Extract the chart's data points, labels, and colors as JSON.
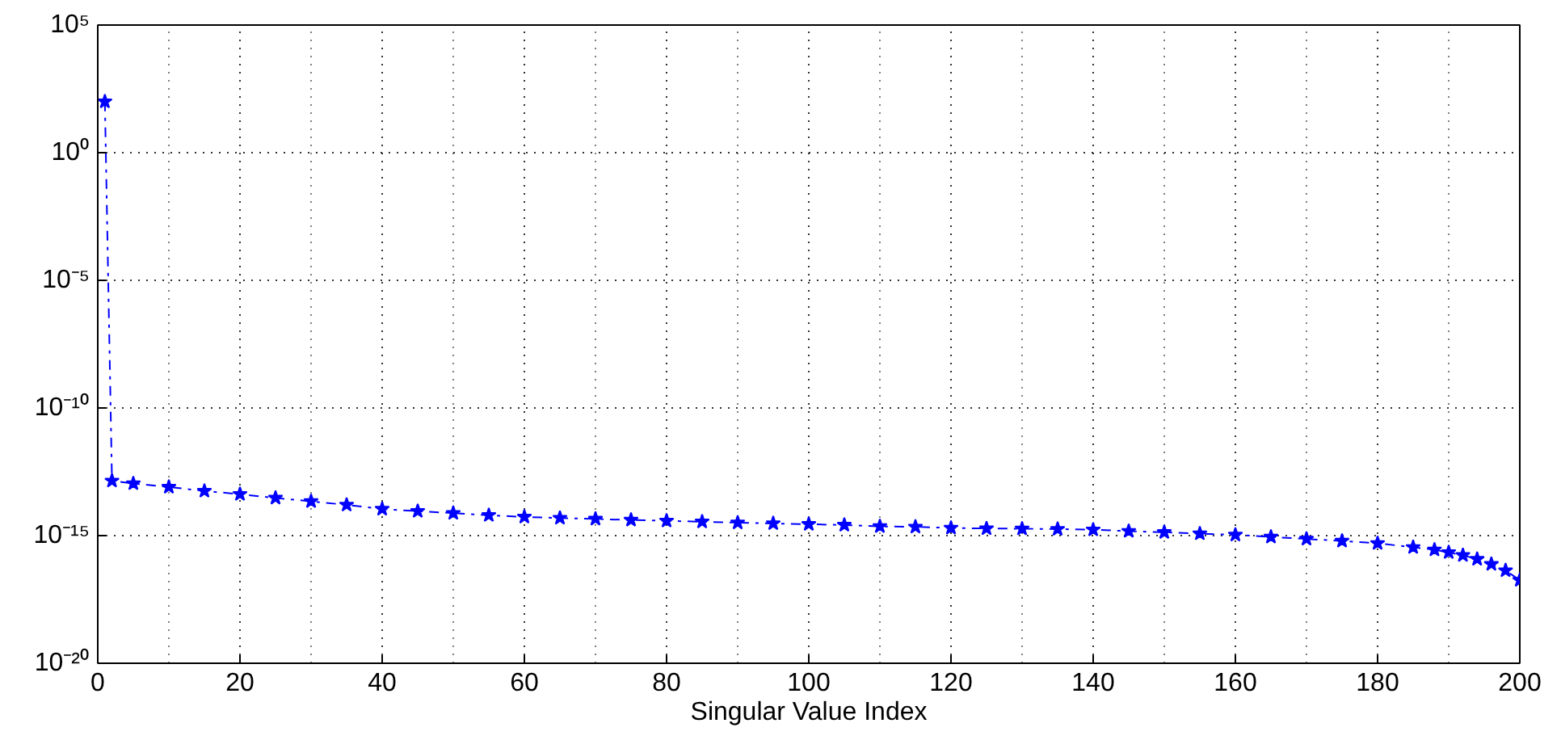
{
  "chart_data": {
    "type": "line",
    "xlabel": "Singular Value Index",
    "x": [
      1,
      2,
      5,
      10,
      15,
      20,
      25,
      30,
      35,
      40,
      45,
      50,
      55,
      60,
      65,
      70,
      75,
      80,
      85,
      90,
      95,
      100,
      105,
      110,
      115,
      120,
      125,
      130,
      135,
      140,
      145,
      150,
      155,
      160,
      165,
      170,
      175,
      180,
      185,
      188,
      190,
      192,
      194,
      196,
      198,
      200
    ],
    "series": [
      {
        "color": "#0000ff",
        "values": [
          100,
          1.4e-13,
          1.1e-13,
          8e-14,
          5.6e-14,
          4.2e-14,
          3e-14,
          2.2e-14,
          1.6e-14,
          1.1e-14,
          9.1e-15,
          7.6e-15,
          6.3e-15,
          5.4e-15,
          4.9e-15,
          4.5e-15,
          4.1e-15,
          3.8e-15,
          3.5e-15,
          3.2e-15,
          3e-15,
          2.8e-15,
          2.6e-15,
          2.3e-15,
          2.2e-15,
          2e-15,
          1.9e-15,
          1.86e-15,
          1.8e-15,
          1.7e-15,
          1.5e-15,
          1.35e-15,
          1.2e-15,
          1.07e-15,
          8.9e-16,
          7.4e-16,
          6.2e-16,
          5e-16,
          3.5e-16,
          2.8e-16,
          2.2e-16,
          1.7e-16,
          1.2e-16,
          7.6e-17,
          4.3e-17,
          1.8e-17
        ]
      }
    ],
    "log": "y",
    "xlim": [
      0,
      200
    ],
    "xticks": [
      0,
      20,
      40,
      60,
      80,
      100,
      120,
      140,
      160,
      180,
      200
    ],
    "ylim": [
      1e-20,
      100000.0
    ],
    "yticks": [
      {
        "value": 1e-20,
        "label": "10⁻²⁰"
      },
      {
        "value": 1e-15,
        "label": "10⁻¹⁵"
      },
      {
        "value": 1e-10,
        "label": "10⁻¹⁰"
      },
      {
        "value": 1e-05,
        "label": "10⁻⁵"
      },
      {
        "value": 1,
        "label": "10⁰"
      },
      {
        "value": 100000.0,
        "label": "10⁵"
      }
    ],
    "grid": true,
    "marker": "star",
    "line_style": "dashdot"
  }
}
